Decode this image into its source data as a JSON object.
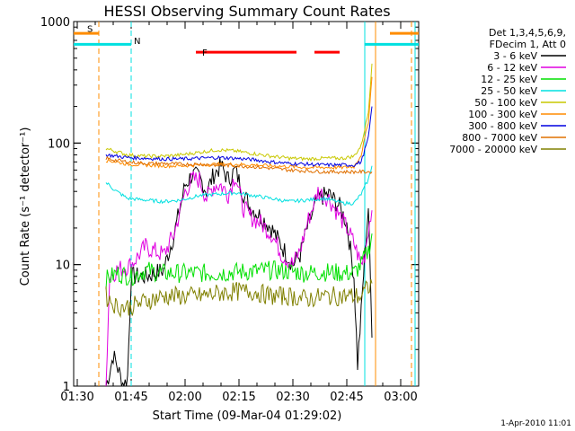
{
  "chart_data": {
    "type": "line",
    "title": "HESSI Observing Summary Count Rates",
    "xlabel": "Start Time (09-Mar-04 01:29:02)",
    "ylabel": "Count Rate (s⁻¹ detector⁻¹)",
    "footer": "1-Apr-2010 11:01",
    "y_scale": "log",
    "ylim": [
      1,
      1000
    ],
    "xlim_minutes_after_0129": [
      0,
      96
    ],
    "x_ticks": [
      {
        "label": "01:30",
        "t": 1
      },
      {
        "label": "01:45",
        "t": 16
      },
      {
        "label": "02:00",
        "t": 31
      },
      {
        "label": "02:15",
        "t": 46
      },
      {
        "label": "02:30",
        "t": 61
      },
      {
        "label": "02:45",
        "t": 76
      },
      {
        "label": "03:00",
        "t": 91
      }
    ],
    "y_ticks": [
      {
        "label": "1",
        "v": 1
      },
      {
        "label": "10",
        "v": 10
      },
      {
        "label": "100",
        "v": 100
      },
      {
        "label": "1000",
        "v": 1000
      }
    ],
    "legend_header": [
      "Det 1,3,4,5,6,9,",
      "FDecim 1, Att 0"
    ],
    "legend_position": "right",
    "series": [
      {
        "name": "3 - 6 keV",
        "color": "#000000",
        "points": [
          [
            9,
            1
          ],
          [
            10,
            1.3
          ],
          [
            11,
            1.8
          ],
          [
            12,
            1.5
          ],
          [
            13,
            1.2
          ],
          [
            14,
            1
          ],
          [
            15,
            1.2
          ],
          [
            16,
            8
          ],
          [
            20,
            8
          ],
          [
            25,
            9
          ],
          [
            28,
            18
          ],
          [
            31,
            45
          ],
          [
            33,
            55
          ],
          [
            35,
            52
          ],
          [
            37,
            40
          ],
          [
            39,
            55
          ],
          [
            41,
            65
          ],
          [
            43,
            50
          ],
          [
            45,
            60
          ],
          [
            47,
            40
          ],
          [
            49,
            30
          ],
          [
            52,
            25
          ],
          [
            55,
            20
          ],
          [
            58,
            14
          ],
          [
            61,
            10
          ],
          [
            63,
            12
          ],
          [
            65,
            20
          ],
          [
            68,
            35
          ],
          [
            71,
            38
          ],
          [
            74,
            30
          ],
          [
            76,
            22
          ],
          [
            78,
            8
          ],
          [
            79,
            1.5
          ],
          [
            80,
            4
          ],
          [
            81,
            12
          ],
          [
            82,
            30
          ],
          [
            83,
            2.5
          ]
        ]
      },
      {
        "name": "6 - 12 keV",
        "color": "#e000e0",
        "points": [
          [
            9,
            1
          ],
          [
            10,
            8
          ],
          [
            12,
            9
          ],
          [
            16,
            10
          ],
          [
            20,
            14
          ],
          [
            25,
            12
          ],
          [
            28,
            18
          ],
          [
            31,
            40
          ],
          [
            33,
            50
          ],
          [
            35,
            50
          ],
          [
            37,
            35
          ],
          [
            39,
            45
          ],
          [
            41,
            45
          ],
          [
            43,
            38
          ],
          [
            45,
            55
          ],
          [
            47,
            30
          ],
          [
            49,
            25
          ],
          [
            52,
            22
          ],
          [
            55,
            18
          ],
          [
            58,
            12
          ],
          [
            61,
            10
          ],
          [
            63,
            13
          ],
          [
            65,
            22
          ],
          [
            68,
            40
          ],
          [
            71,
            35
          ],
          [
            74,
            25
          ],
          [
            76,
            20
          ],
          [
            78,
            15
          ],
          [
            80,
            10
          ],
          [
            81,
            12
          ],
          [
            82,
            20
          ],
          [
            83,
            28
          ]
        ]
      },
      {
        "name": "12 - 25 keV",
        "color": "#00e000",
        "points": [
          [
            9,
            7.5
          ],
          [
            12,
            8.5
          ],
          [
            16,
            8
          ],
          [
            20,
            9
          ],
          [
            25,
            8.5
          ],
          [
            30,
            8.5
          ],
          [
            35,
            8.5
          ],
          [
            40,
            8.5
          ],
          [
            45,
            8.7
          ],
          [
            50,
            8.8
          ],
          [
            55,
            9
          ],
          [
            60,
            8.8
          ],
          [
            65,
            8.5
          ],
          [
            70,
            8.7
          ],
          [
            75,
            8.5
          ],
          [
            78,
            8.5
          ],
          [
            80,
            10
          ],
          [
            82,
            13
          ],
          [
            83,
            18
          ]
        ]
      },
      {
        "name": "25 - 50 keV",
        "color": "#00e0e0",
        "points": [
          [
            9,
            47
          ],
          [
            10,
            45
          ],
          [
            11,
            42
          ],
          [
            12,
            40
          ],
          [
            15,
            35
          ],
          [
            20,
            34
          ],
          [
            25,
            33
          ],
          [
            30,
            34
          ],
          [
            35,
            37
          ],
          [
            40,
            38
          ],
          [
            45,
            39
          ],
          [
            50,
            37
          ],
          [
            55,
            35
          ],
          [
            60,
            33
          ],
          [
            65,
            34
          ],
          [
            70,
            35
          ],
          [
            75,
            32
          ],
          [
            78,
            32
          ],
          [
            80,
            38
          ],
          [
            82,
            50
          ],
          [
            83,
            65
          ]
        ]
      },
      {
        "name": "50 - 100 keV",
        "color": "#c8c800",
        "points": [
          [
            9,
            90
          ],
          [
            12,
            85
          ],
          [
            15,
            80
          ],
          [
            20,
            78
          ],
          [
            25,
            78
          ],
          [
            30,
            80
          ],
          [
            35,
            84
          ],
          [
            40,
            88
          ],
          [
            45,
            86
          ],
          [
            50,
            82
          ],
          [
            55,
            78
          ],
          [
            60,
            75
          ],
          [
            65,
            74
          ],
          [
            70,
            75
          ],
          [
            75,
            75
          ],
          [
            78,
            78
          ],
          [
            80,
            95
          ],
          [
            82,
            180
          ],
          [
            83,
            450
          ]
        ]
      },
      {
        "name": "100 - 300 keV",
        "color": "#ff8c00",
        "points": [
          [
            9,
            72
          ],
          [
            12,
            70
          ],
          [
            15,
            67
          ],
          [
            20,
            66
          ],
          [
            25,
            65
          ],
          [
            30,
            65
          ],
          [
            35,
            66
          ],
          [
            40,
            67
          ],
          [
            45,
            67
          ],
          [
            50,
            66
          ],
          [
            55,
            65
          ],
          [
            60,
            64
          ],
          [
            65,
            63
          ],
          [
            70,
            63
          ],
          [
            75,
            63
          ],
          [
            78,
            64
          ],
          [
            80,
            80
          ],
          [
            82,
            150
          ],
          [
            83,
            350
          ]
        ]
      },
      {
        "name": "300 - 800 keV",
        "color": "#0000e0",
        "points": [
          [
            9,
            80
          ],
          [
            12,
            78
          ],
          [
            15,
            76
          ],
          [
            20,
            75
          ],
          [
            25,
            74
          ],
          [
            30,
            74
          ],
          [
            35,
            75
          ],
          [
            40,
            76
          ],
          [
            45,
            75
          ],
          [
            50,
            73
          ],
          [
            55,
            70
          ],
          [
            60,
            68
          ],
          [
            65,
            67
          ],
          [
            70,
            66
          ],
          [
            75,
            66
          ],
          [
            78,
            66
          ],
          [
            80,
            70
          ],
          [
            82,
            110
          ],
          [
            83,
            200
          ]
        ]
      },
      {
        "name": "800 - 7000 keV",
        "color": "#e07000",
        "points": [
          [
            9,
            75
          ],
          [
            12,
            72
          ],
          [
            15,
            70
          ],
          [
            20,
            68
          ],
          [
            25,
            68
          ],
          [
            30,
            67
          ],
          [
            35,
            67
          ],
          [
            40,
            66
          ],
          [
            45,
            65
          ],
          [
            50,
            64
          ],
          [
            55,
            62
          ],
          [
            60,
            60
          ],
          [
            65,
            59
          ],
          [
            70,
            58
          ],
          [
            75,
            58
          ],
          [
            78,
            58
          ],
          [
            80,
            58
          ],
          [
            82,
            58
          ],
          [
            83,
            58
          ]
        ]
      },
      {
        "name": "7000 - 20000 keV",
        "color": "#808000",
        "points": [
          [
            9,
            5.5
          ],
          [
            12,
            4.5
          ],
          [
            16,
            4.5
          ],
          [
            20,
            5
          ],
          [
            25,
            5.5
          ],
          [
            30,
            5.5
          ],
          [
            35,
            5.5
          ],
          [
            40,
            5.8
          ],
          [
            45,
            6
          ],
          [
            50,
            6
          ],
          [
            55,
            5.5
          ],
          [
            60,
            5.5
          ],
          [
            65,
            5.2
          ],
          [
            70,
            5.5
          ],
          [
            75,
            5.5
          ],
          [
            78,
            5.5
          ],
          [
            80,
            5.5
          ],
          [
            81,
            6
          ],
          [
            83,
            7
          ]
        ]
      }
    ],
    "annotations": [
      {
        "label": "S",
        "color": "#ff8c00",
        "t": 3
      },
      {
        "label": "N",
        "color": "#00e0e0",
        "t": 16
      },
      {
        "label": "F",
        "color": "#ff0000",
        "t": 35
      }
    ],
    "flag_bars": [
      {
        "name": "S",
        "color": "#ff8c00",
        "v": 800,
        "ranges": [
          [
            0,
            7
          ],
          [
            88,
            96
          ]
        ]
      },
      {
        "name": "N",
        "color": "#00e0e0",
        "v": 650,
        "ranges": [
          [
            0,
            16
          ],
          [
            81,
            96
          ]
        ]
      },
      {
        "name": "F",
        "color": "#ff0000",
        "v": 560,
        "ranges": [
          [
            34,
            62
          ],
          [
            67,
            74
          ]
        ]
      }
    ],
    "vertical_markers": [
      {
        "t": 7,
        "color": "#ff8c00",
        "dash": true
      },
      {
        "t": 16,
        "color": "#00e0e0",
        "dash": true
      },
      {
        "t": 81,
        "color": "#00e0e0",
        "dash": false
      },
      {
        "t": 84,
        "color": "#ff8c00",
        "dash": false
      },
      {
        "t": 94,
        "color": "#ff8c00",
        "dash": true
      },
      {
        "t": 95,
        "color": "#00e0e0",
        "dash": false
      }
    ]
  }
}
